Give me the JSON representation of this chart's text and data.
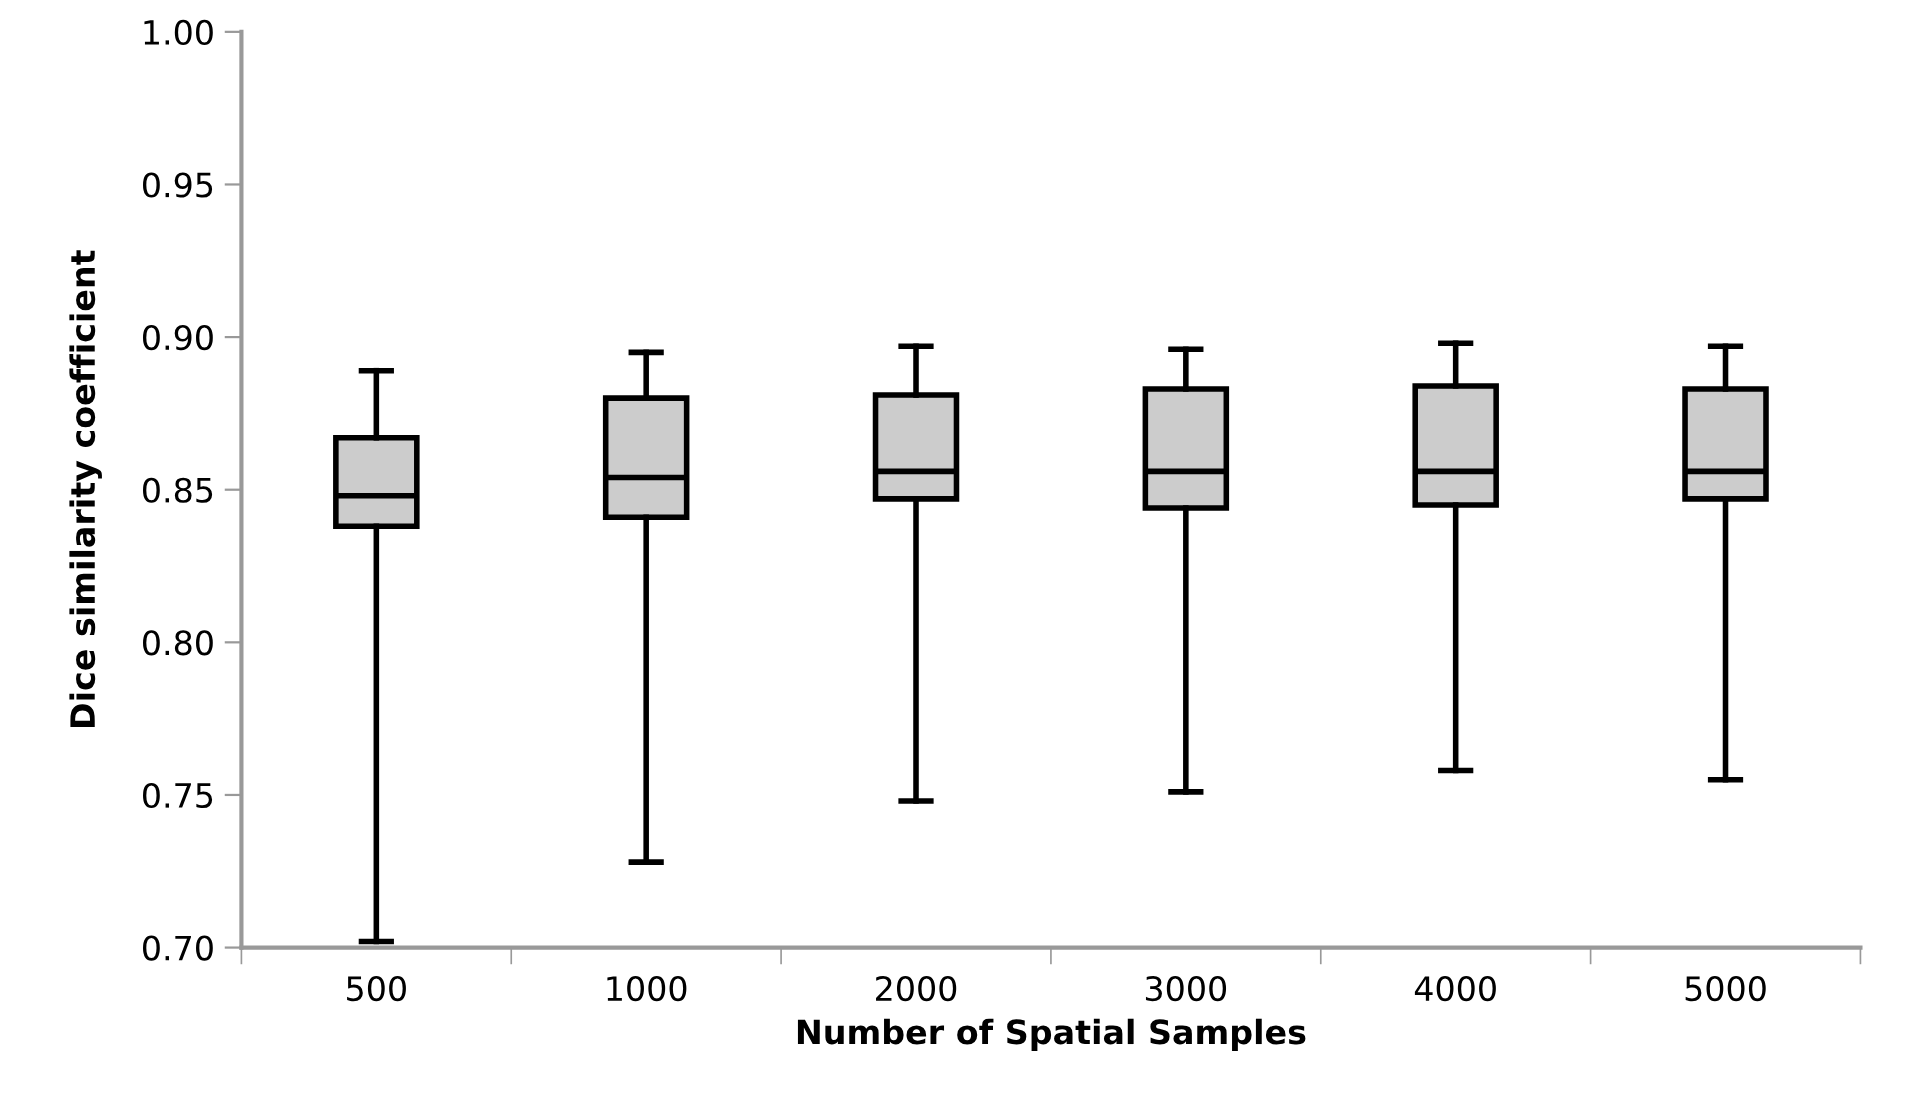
{
  "chart_data": {
    "type": "box",
    "xlabel": "Number of Spatial Samples",
    "ylabel": "Dice similarity coefficient",
    "categories": [
      "500",
      "1000",
      "2000",
      "3000",
      "4000",
      "5000"
    ],
    "color": "#cccccc",
    "boxes": [
      {
        "low": 0.702,
        "q1": 0.838,
        "median": 0.848,
        "q3": 0.867,
        "high": 0.889
      },
      {
        "low": 0.728,
        "q1": 0.841,
        "median": 0.854,
        "q3": 0.88,
        "high": 0.895
      },
      {
        "low": 0.748,
        "q1": 0.847,
        "median": 0.856,
        "q3": 0.881,
        "high": 0.897
      },
      {
        "low": 0.751,
        "q1": 0.844,
        "median": 0.856,
        "q3": 0.883,
        "high": 0.896
      },
      {
        "low": 0.758,
        "q1": 0.845,
        "median": 0.856,
        "q3": 0.884,
        "high": 0.898
      },
      {
        "low": 0.755,
        "q1": 0.847,
        "median": 0.856,
        "q3": 0.883,
        "high": 0.897
      }
    ],
    "ylim": [
      0.7,
      1.0
    ],
    "yticks": [
      {
        "value": 0.7,
        "label": "0.70"
      },
      {
        "value": 0.75,
        "label": "0.75"
      },
      {
        "value": 0.8,
        "label": "0.80"
      },
      {
        "value": 0.85,
        "label": "0.85"
      },
      {
        "value": 0.9,
        "label": "0.90"
      },
      {
        "value": 0.95,
        "label": "0.95"
      },
      {
        "value": 1.0,
        "label": "1.00"
      }
    ],
    "grid": false
  }
}
